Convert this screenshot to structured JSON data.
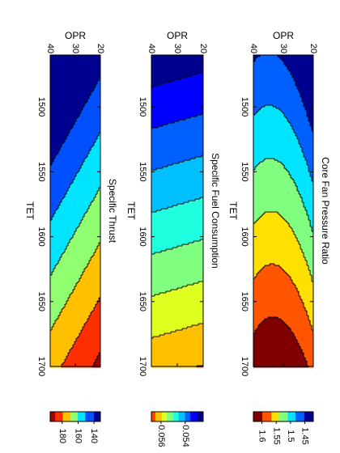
{
  "chart_data": [
    {
      "type": "heatmap",
      "title": "Core Fan Pressure Ratio",
      "xlabel": "TET",
      "ylabel": "OPR",
      "xlim": [
        1460,
        1700
      ],
      "ylim": [
        20,
        40
      ],
      "x_ticks": [
        "1500",
        "1550",
        "1600",
        "1650",
        "1700"
      ],
      "y_ticks": [
        "20",
        "30",
        "40"
      ],
      "colorbar": {
        "range": [
          1.42,
          1.63
        ],
        "ticks": [
          "1.45",
          "1.5",
          "1.55",
          "1.6"
        ]
      },
      "levels": [
        1.42,
        1.45,
        1.48,
        1.51,
        1.54,
        1.57,
        1.6,
        1.63
      ],
      "level_colors": [
        "#000090",
        "#0060ff",
        "#00e4ff",
        "#80ff80",
        "#ffe000",
        "#ff5500",
        "#800000"
      ],
      "orientation": "rotated 90 degrees clockwise"
    },
    {
      "type": "heatmap",
      "title": "Specific Fuel Consumption",
      "xlabel": "TET",
      "ylabel": "OPR",
      "xlim": [
        1460,
        1700
      ],
      "ylim": [
        20,
        40
      ],
      "x_ticks": [
        "1500",
        "1550",
        "1600",
        "1650",
        "1700"
      ],
      "y_ticks": [
        "20",
        "30",
        "40"
      ],
      "colorbar": {
        "range": [
          0.0525,
          0.0568
        ],
        "ticks": [
          "0.054",
          "0.056"
        ]
      },
      "levels": [
        0.0525,
        0.053,
        0.0535,
        0.054,
        0.0545,
        0.055,
        0.0555,
        0.056,
        0.0565,
        0.0568
      ],
      "level_colors": [
        "#00008f",
        "#0000ff",
        "#0060ff",
        "#00c0ff",
        "#20ffdf",
        "#80ff80",
        "#dfff20",
        "#ffc000",
        "#ff4000",
        "#c00000"
      ],
      "orientation": "rotated 90 degrees clockwise"
    },
    {
      "type": "heatmap",
      "title": "Specific Thrust",
      "xlabel": "TET",
      "ylabel": "OPR",
      "xlim": [
        1460,
        1700
      ],
      "ylim": [
        20,
        40
      ],
      "x_ticks": [
        "1500",
        "1550",
        "1600",
        "1650",
        "1700"
      ],
      "y_ticks": [
        "20",
        "30",
        "40"
      ],
      "colorbar": {
        "range": [
          132,
          195
        ],
        "ticks": [
          "140",
          "160",
          "180"
        ]
      },
      "levels": [
        132,
        140,
        150,
        160,
        170,
        180,
        190,
        195
      ],
      "level_colors": [
        "#000090",
        "#0050ff",
        "#00e4ff",
        "#90ff70",
        "#ffc000",
        "#ff3000",
        "#9f0000"
      ],
      "orientation": "rotated 90 degrees clockwise"
    }
  ]
}
